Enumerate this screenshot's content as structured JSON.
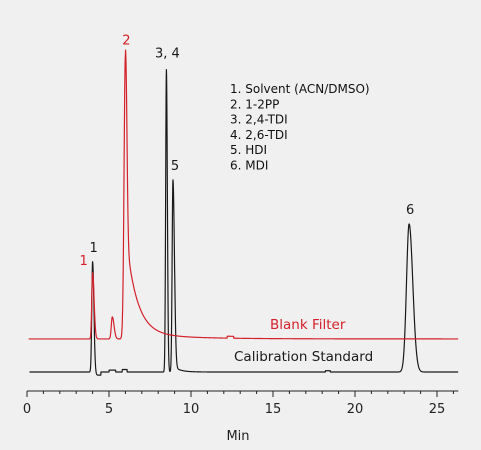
{
  "colors": {
    "background": "#f0f0f0",
    "calibration": "#1a1a1a",
    "blank": "#d4202a",
    "axis": "#222222"
  },
  "legend": [
    "1.  Solvent (ACN/DMSO)",
    "2.  1-2PP",
    "3.  2,4-TDI",
    "4.  2,6-TDI",
    "5.  HDI",
    "6.  MDI"
  ],
  "chart_data": {
    "type": "line",
    "title": "",
    "xlabel": "Min",
    "ylabel": "",
    "xlim": [
      0,
      26.5
    ],
    "ylim": [
      0,
      1
    ],
    "grid": false,
    "x_ticks": [
      0,
      5,
      10,
      15,
      20,
      25
    ],
    "x_tick_labels": [
      "0",
      "5",
      "10",
      "15",
      "20",
      "25"
    ],
    "series": [
      {
        "name": "Calibration Standard",
        "color": "#1a1a1a",
        "baseline": 0,
        "peaks": [
          {
            "label": "1",
            "x": 4.0,
            "height": 0.35
          },
          {
            "label": "3, 4",
            "x": 8.5,
            "height": 0.96
          },
          {
            "label": "5",
            "x": 8.9,
            "height": 0.61
          },
          {
            "label": "6",
            "x": 23.3,
            "height": 0.47
          }
        ]
      },
      {
        "name": "Blank Filter",
        "color": "#d4202a",
        "baseline": 0.105,
        "peaks": [
          {
            "label": "1",
            "x": 4.0,
            "height": 0.21
          },
          {
            "label": "",
            "x": 5.2,
            "height": 0.07
          },
          {
            "label": "2",
            "x": 6.0,
            "height": 0.9
          }
        ]
      }
    ],
    "annotations": [
      {
        "text": "1",
        "series": "Calibration Standard",
        "x": 4.0
      },
      {
        "text": "3, 4",
        "series": "Calibration Standard",
        "x": 8.5
      },
      {
        "text": "5",
        "series": "Calibration Standard",
        "x": 8.9
      },
      {
        "text": "6",
        "series": "Calibration Standard",
        "x": 23.3
      },
      {
        "text": "1",
        "series": "Blank Filter",
        "x": 4.0
      },
      {
        "text": "2",
        "series": "Blank Filter",
        "x": 6.0
      }
    ]
  }
}
